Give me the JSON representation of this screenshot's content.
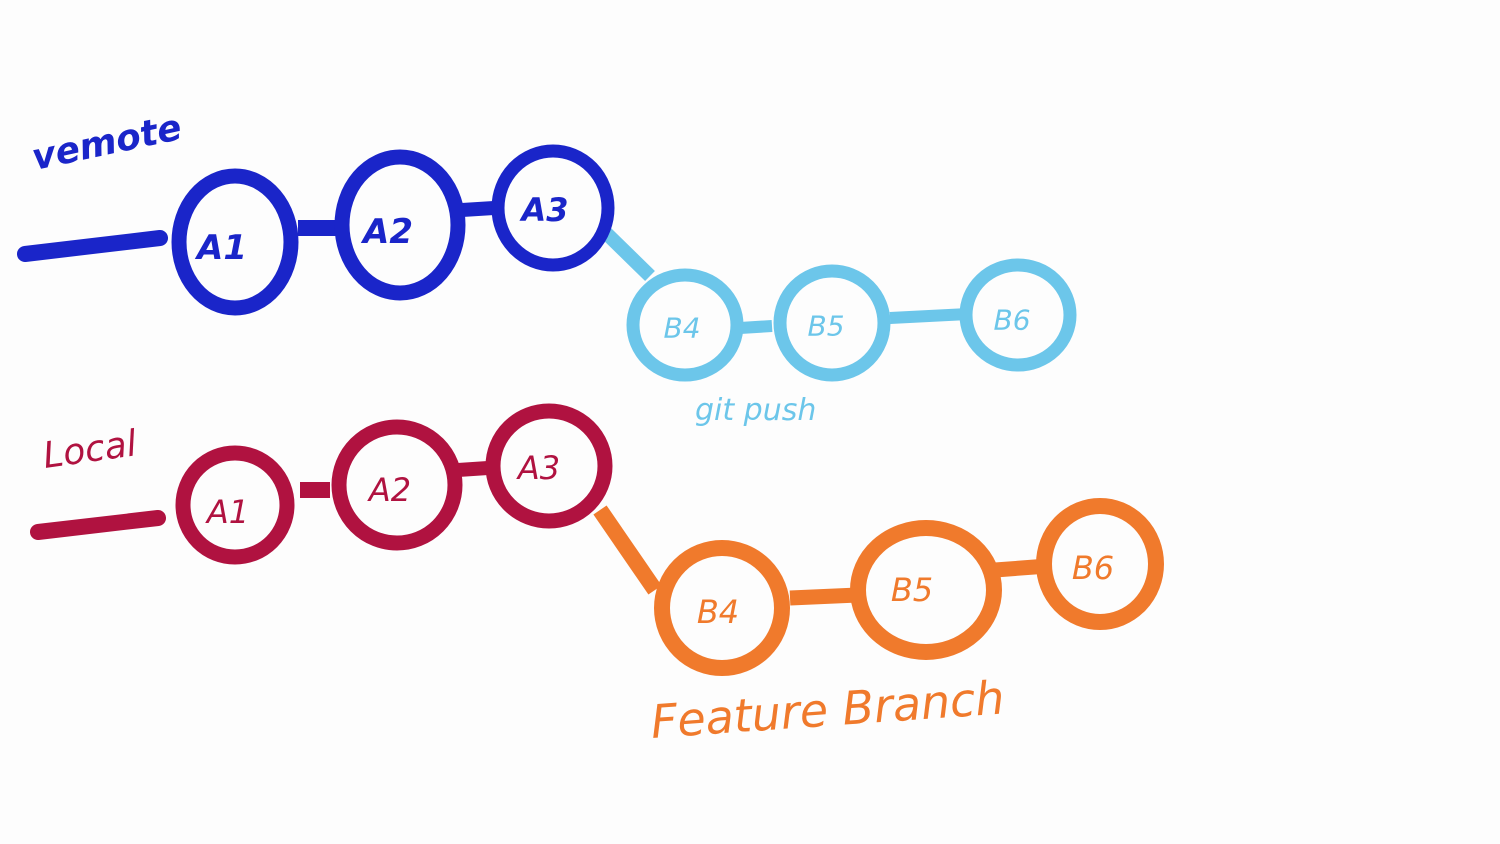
{
  "colors": {
    "remote_main": "#1a25c9",
    "remote_branch": "#6cc6ea",
    "local_main": "#b01240",
    "local_branch": "#f07a2c",
    "background": "#fdfdfd"
  },
  "remote": {
    "label": "vemote",
    "commits": [
      "A1",
      "A2",
      "A3"
    ],
    "branch_commits": [
      "B4",
      "B5",
      "B6"
    ],
    "branch_caption": "git push"
  },
  "local": {
    "label": "Local",
    "commits": [
      "A1",
      "A2",
      "A3"
    ],
    "branch_commits": [
      "B4",
      "B5",
      "B6"
    ],
    "branch_caption": "Feature Branch"
  }
}
